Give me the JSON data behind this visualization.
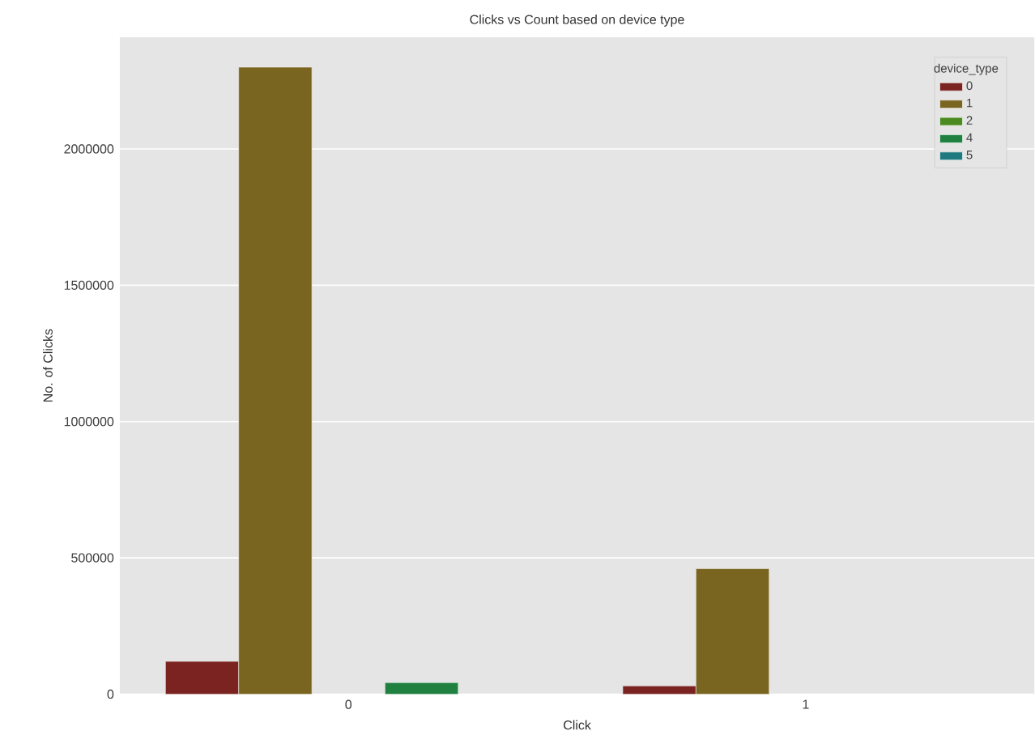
{
  "chart_data": {
    "type": "bar",
    "title": "Clicks vs Count based on device type",
    "xlabel": "Click",
    "ylabel": "No. of Clicks",
    "legend_title": "device_type",
    "categories": [
      "0",
      "1"
    ],
    "series": [
      {
        "name": "0",
        "color": "#7b2320",
        "values": [
          120000,
          30000
        ]
      },
      {
        "name": "1",
        "color": "#7a6520",
        "values": [
          2300000,
          460000
        ]
      },
      {
        "name": "2",
        "color": "#4a8a20",
        "values": [
          null,
          null
        ]
      },
      {
        "name": "4",
        "color": "#1f8040",
        "values": [
          42000,
          null
        ]
      },
      {
        "name": "5",
        "color": "#1f7a80",
        "values": [
          null,
          null
        ]
      }
    ],
    "ylim": [
      0,
      2410000
    ],
    "yticks": [
      0,
      500000,
      1000000,
      1500000,
      2000000
    ],
    "grid": "y",
    "legend": "top right"
  }
}
